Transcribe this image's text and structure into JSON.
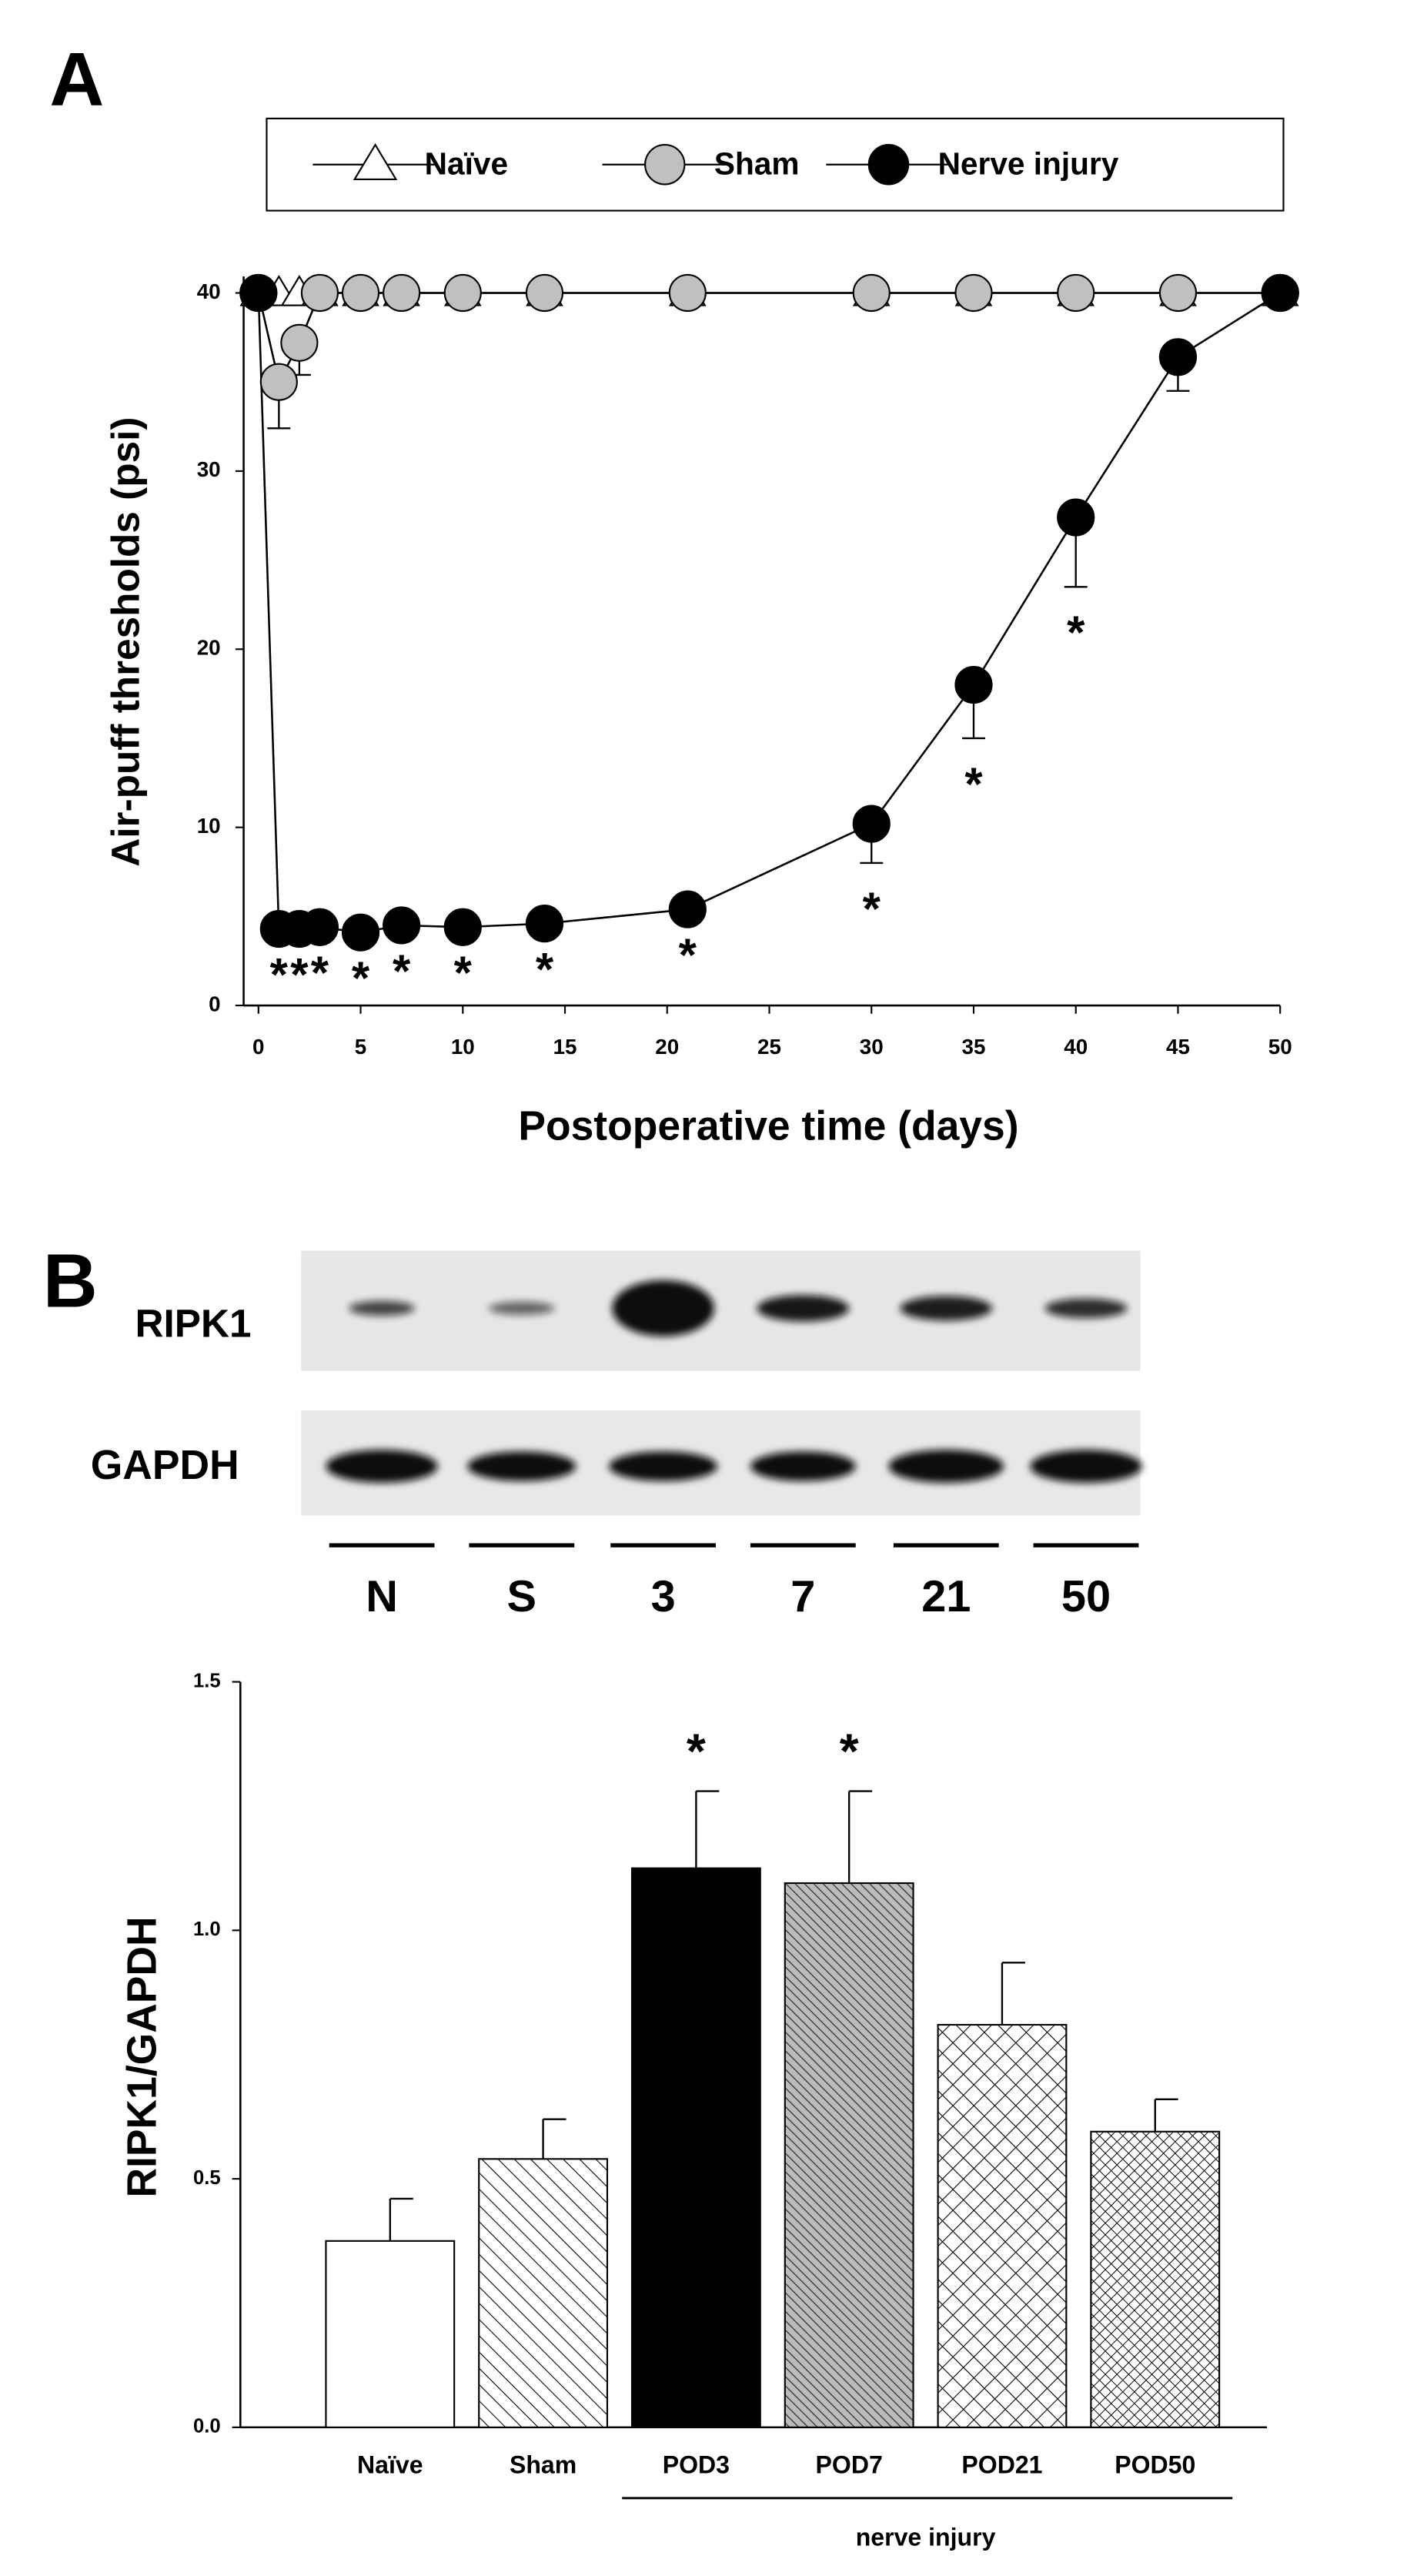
{
  "panel_labels": [
    "A",
    "B"
  ],
  "chart_data": [
    {
      "type": "line",
      "xlabel": "Postoperative time (days)",
      "ylabel": "Air-puff thresholds (psi)",
      "x": [
        0,
        1,
        2,
        3,
        5,
        7,
        10,
        14,
        21,
        30,
        35,
        40,
        45,
        50
      ],
      "xlim": [
        0,
        50
      ],
      "xticks": [
        0,
        5,
        10,
        15,
        20,
        25,
        30,
        35,
        40,
        45,
        50
      ],
      "ylim": [
        0,
        40
      ],
      "yticks": [
        0,
        10,
        20,
        30,
        40
      ],
      "series": [
        {
          "name": "Naïve",
          "color": "#ffffff",
          "marker": "triangle",
          "values": [
            40,
            40,
            40,
            40,
            40,
            40,
            40,
            40,
            40,
            40,
            40,
            40,
            40,
            40
          ],
          "errors": [
            null,
            null,
            null,
            null,
            null,
            null,
            null,
            null,
            null,
            null,
            null,
            null,
            null,
            null
          ]
        },
        {
          "name": "Sham",
          "color": "#c0c0c0",
          "marker": "circle",
          "values": [
            40,
            35,
            37.2,
            40,
            40,
            40,
            40,
            40,
            40,
            40,
            40,
            40,
            40,
            40
          ],
          "errors": [
            null,
            2.6,
            1.8,
            null,
            null,
            null,
            null,
            null,
            null,
            null,
            null,
            null,
            null,
            null
          ]
        },
        {
          "name": "Nerve injury",
          "color": "#000000",
          "marker": "circle",
          "values": [
            40,
            4.3,
            4.3,
            4.4,
            4.1,
            4.5,
            4.4,
            4.6,
            5.4,
            10.2,
            18,
            27.4,
            36.4,
            40
          ],
          "errors": [
            null,
            null,
            null,
            null,
            null,
            null,
            null,
            null,
            null,
            2.2,
            3,
            3.9,
            1.9,
            null
          ]
        }
      ],
      "annotations": [
        {
          "text": "*",
          "x": 1
        },
        {
          "text": "*",
          "x": 2
        },
        {
          "text": "*",
          "x": 3
        },
        {
          "text": "*",
          "x": 5
        },
        {
          "text": "*",
          "x": 7
        },
        {
          "text": "*",
          "x": 10
        },
        {
          "text": "*",
          "x": 14
        },
        {
          "text": "*",
          "x": 21
        },
        {
          "text": "*",
          "x": 30
        },
        {
          "text": "*",
          "x": 35
        },
        {
          "text": "*",
          "x": 40
        }
      ]
    },
    {
      "type": "bar",
      "ylabel": "RIPK1/GAPDH",
      "categories": [
        "Naïve",
        "Sham",
        "POD3",
        "POD7",
        "POD21",
        "POD50"
      ],
      "values": [
        0.375,
        0.54,
        1.125,
        1.095,
        0.81,
        0.595
      ],
      "errors": [
        0.085,
        0.08,
        0.155,
        0.185,
        0.125,
        0.065
      ],
      "fills": [
        "none",
        "hatch",
        "solid",
        "dense-hatch",
        "crosshatch",
        "dense-crosshatch"
      ],
      "ylim": [
        0,
        1.5
      ],
      "yticks": [
        {
          "value": 0,
          "label": "0.0"
        },
        0.5,
        {
          "value": 1,
          "label": "1.0"
        },
        1.5
      ],
      "group_label": "nerve injury",
      "annotations": [
        {
          "text": "*",
          "category": "POD3"
        },
        {
          "text": "*",
          "category": "POD7"
        }
      ]
    }
  ],
  "blot": {
    "rows": [
      "RIPK1",
      "GAPDH"
    ],
    "lanes": [
      "N",
      "S",
      "3",
      "7",
      "21",
      "50"
    ]
  }
}
